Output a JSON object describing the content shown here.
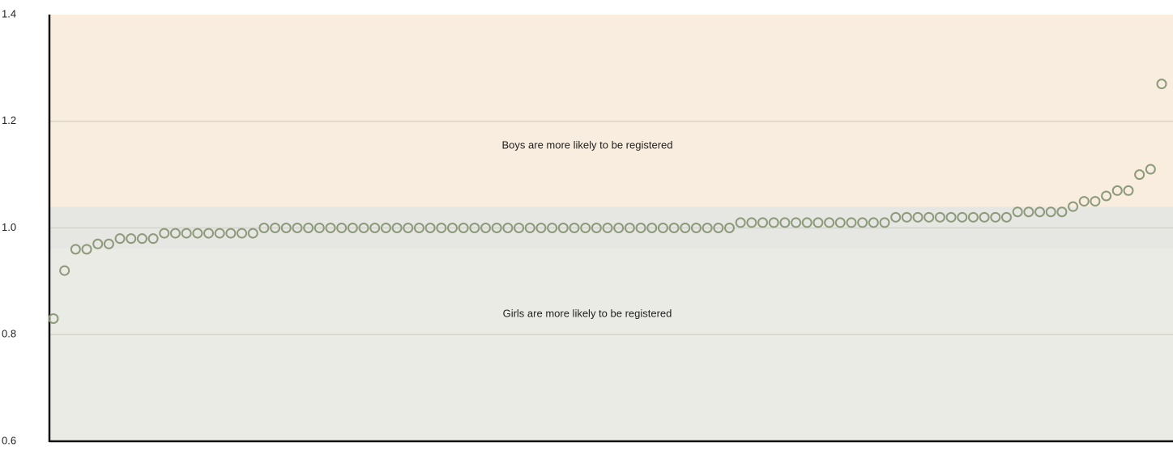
{
  "chart_data": {
    "type": "dot",
    "values": [
      0.83,
      0.92,
      0.96,
      0.96,
      0.97,
      0.97,
      0.98,
      0.98,
      0.98,
      0.98,
      0.99,
      0.99,
      0.99,
      0.99,
      0.99,
      0.99,
      0.99,
      0.99,
      0.99,
      1.0,
      1.0,
      1.0,
      1.0,
      1.0,
      1.0,
      1.0,
      1.0,
      1.0,
      1.0,
      1.0,
      1.0,
      1.0,
      1.0,
      1.0,
      1.0,
      1.0,
      1.0,
      1.0,
      1.0,
      1.0,
      1.0,
      1.0,
      1.0,
      1.0,
      1.0,
      1.0,
      1.0,
      1.0,
      1.0,
      1.0,
      1.0,
      1.0,
      1.0,
      1.0,
      1.0,
      1.0,
      1.0,
      1.0,
      1.0,
      1.0,
      1.0,
      1.0,
      1.01,
      1.01,
      1.01,
      1.01,
      1.01,
      1.01,
      1.01,
      1.01,
      1.01,
      1.01,
      1.01,
      1.01,
      1.01,
      1.01,
      1.02,
      1.02,
      1.02,
      1.02,
      1.02,
      1.02,
      1.02,
      1.02,
      1.02,
      1.02,
      1.02,
      1.03,
      1.03,
      1.03,
      1.03,
      1.03,
      1.04,
      1.05,
      1.05,
      1.06,
      1.07,
      1.07,
      1.1,
      1.11,
      1.27
    ],
    "color": "#8c9a7a",
    "ylim": [
      0.6,
      1.4
    ],
    "yticks": [
      0.6,
      0.8,
      {
        "value": 1,
        "label": "1.0"
      },
      1.2,
      1.4
    ],
    "grid": true,
    "bands": [
      {
        "from": 1.04,
        "to": 1.4,
        "color": "#f8eddf",
        "label": "Boys are more likely to be registered"
      },
      {
        "from": 0.96,
        "to": 1.04,
        "color": "#e6e6e3"
      },
      {
        "from": 0.6,
        "to": 0.96,
        "color": "#ebebe6",
        "label": "Girls are more likely to be registered"
      }
    ]
  }
}
